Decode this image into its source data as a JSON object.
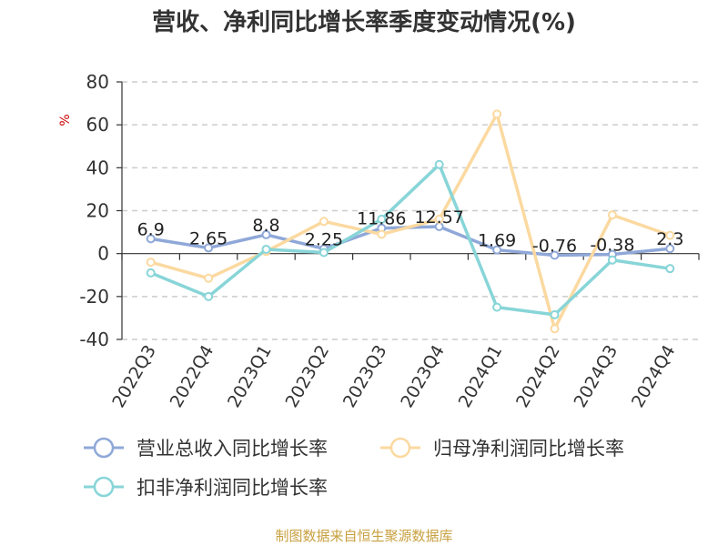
{
  "chart_data": {
    "type": "line",
    "title": "营收、净利同比增长率季度变动情况(%)",
    "ylabel": "%",
    "categories": [
      "2022Q3",
      "2022Q4",
      "2023Q1",
      "2023Q2",
      "2023Q3",
      "2023Q4",
      "2024Q1",
      "2024Q2",
      "2024Q3",
      "2024Q4"
    ],
    "ylim": [
      -40,
      80
    ],
    "yticks": [
      80,
      60,
      40,
      20,
      0,
      -20,
      -40
    ],
    "grid": true,
    "legend_position": "bottom",
    "series": [
      {
        "name": "营业总收入同比增长率",
        "color": "#8fa8d8",
        "values": [
          6.9,
          2.65,
          8.8,
          2.25,
          11.86,
          12.57,
          1.69,
          -0.76,
          -0.38,
          2.3
        ]
      },
      {
        "name": "归母净利润同比增长率",
        "color": "#fbd9a0",
        "values": [
          -4,
          -11.5,
          1,
          15,
          9,
          16,
          65,
          -35,
          18,
          8.5
        ]
      },
      {
        "name": "扣非净利润同比增长率",
        "color": "#88d5d8",
        "values": [
          -9,
          -20,
          2,
          0.5,
          16,
          41.5,
          -25,
          -28.5,
          -3,
          -7
        ]
      }
    ],
    "data_labels": [
      "6.9",
      "2.65",
      "8.8",
      "2.25",
      "11.86",
      "12.57",
      "1.69",
      "-0.76",
      "-0.38",
      "2.3"
    ],
    "source": "制图数据来自恒生聚源数据库"
  }
}
